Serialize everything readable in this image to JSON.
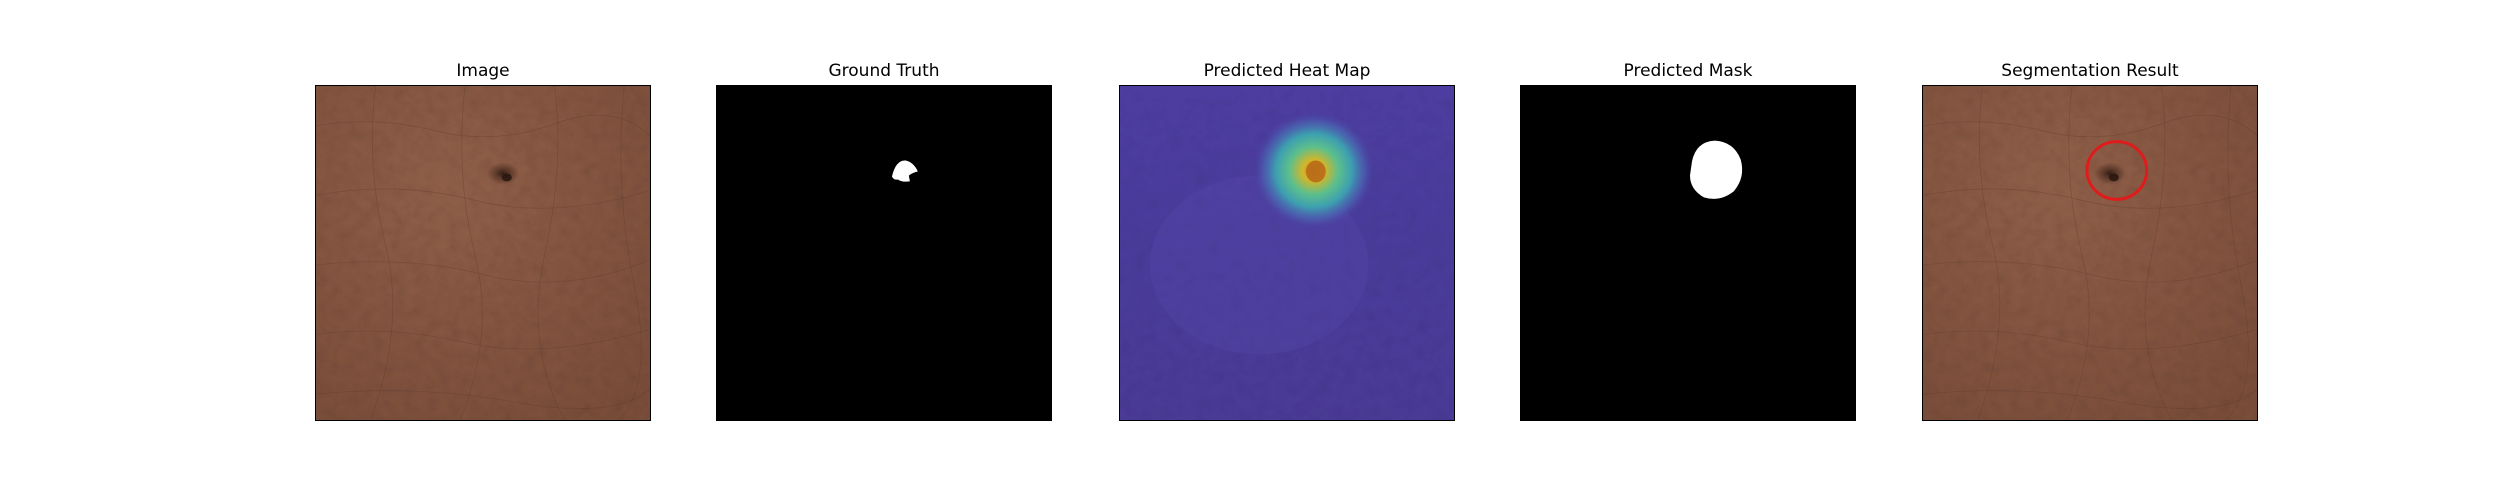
{
  "figure": {
    "panels": [
      {
        "id": "image",
        "title": "Image"
      },
      {
        "id": "ground-truth",
        "title": "Ground Truth"
      },
      {
        "id": "heat-map",
        "title": "Predicted Heat Map"
      },
      {
        "id": "predicted-mask",
        "title": "Predicted Mask"
      },
      {
        "id": "segmentation",
        "title": "Segmentation Result"
      }
    ]
  },
  "colors": {
    "leather": "#8a5a44",
    "leather_dark": "#6e4534",
    "mask_background": "#000000",
    "mask_foreground": "#ffffff",
    "heatmap_low": "#4b3a9e",
    "heatmap_high": "#d8b21c",
    "circle": "#e01b1b"
  }
}
